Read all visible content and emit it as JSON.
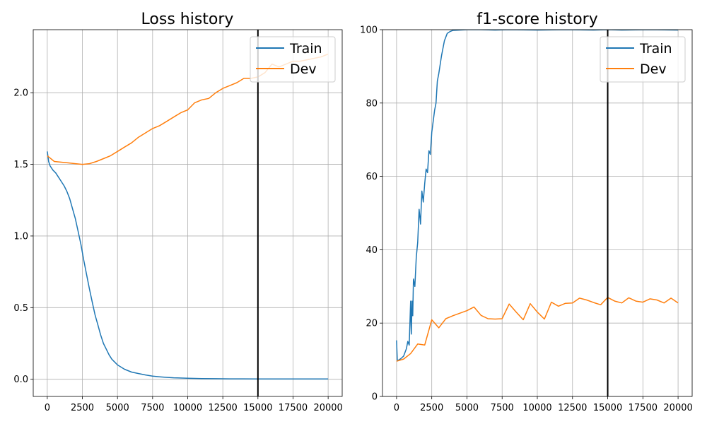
{
  "colors": {
    "train": "#1f77b4",
    "dev": "#ff7f0e",
    "grid": "#b0b0b0",
    "marker": "#000000"
  },
  "chart_data": [
    {
      "type": "line",
      "title": "Loss history",
      "xlabel": "",
      "ylabel": "",
      "xlim": [
        -1000,
        21000
      ],
      "ylim": [
        -0.12,
        2.44
      ],
      "xticks": [
        0,
        2500,
        5000,
        7500,
        10000,
        12500,
        15000,
        17500,
        20000
      ],
      "yticks": [
        0.0,
        0.5,
        1.0,
        1.5,
        2.0
      ],
      "ytick_labels": [
        "0.0",
        "0.5",
        "1.0",
        "1.5",
        "2.0"
      ],
      "grid": true,
      "legend": "top-right",
      "vline": 15000,
      "series": [
        {
          "name": "Train",
          "color": "#1f77b4",
          "x": [
            0,
            100,
            200,
            400,
            600,
            800,
            1000,
            1200,
            1400,
            1600,
            1800,
            2000,
            2200,
            2400,
            2600,
            2800,
            3000,
            3200,
            3400,
            3600,
            3800,
            4000,
            4200,
            4400,
            4600,
            4800,
            5000,
            5500,
            6000,
            6500,
            7000,
            7500,
            8000,
            8500,
            9000,
            10000,
            11000,
            12000,
            13000,
            14000,
            15000,
            16000,
            17000,
            18000,
            19000,
            20000
          ],
          "y": [
            1.59,
            1.52,
            1.49,
            1.46,
            1.44,
            1.41,
            1.38,
            1.35,
            1.31,
            1.26,
            1.19,
            1.12,
            1.03,
            0.94,
            0.83,
            0.73,
            0.63,
            0.54,
            0.45,
            0.38,
            0.31,
            0.25,
            0.21,
            0.17,
            0.14,
            0.12,
            0.1,
            0.07,
            0.05,
            0.04,
            0.03,
            0.022,
            0.017,
            0.013,
            0.01,
            0.007,
            0.005,
            0.004,
            0.003,
            0.003,
            0.002,
            0.002,
            0.002,
            0.002,
            0.002,
            0.002
          ]
        },
        {
          "name": "Dev",
          "color": "#ff7f0e",
          "x": [
            0,
            500,
            1000,
            1500,
            2000,
            2500,
            3000,
            3500,
            4000,
            4500,
            5000,
            5500,
            6000,
            6500,
            7000,
            7500,
            8000,
            8500,
            9000,
            9500,
            10000,
            10500,
            11000,
            11500,
            12000,
            12500,
            13000,
            13500,
            14000,
            14500,
            15000,
            15500,
            16000,
            16500,
            17000,
            17500,
            18000,
            18500,
            19000,
            19500,
            20000
          ],
          "y": [
            1.56,
            1.52,
            1.515,
            1.51,
            1.505,
            1.5,
            1.505,
            1.52,
            1.54,
            1.56,
            1.59,
            1.62,
            1.65,
            1.69,
            1.72,
            1.75,
            1.77,
            1.8,
            1.83,
            1.86,
            1.88,
            1.93,
            1.95,
            1.96,
            2.0,
            2.03,
            2.05,
            2.07,
            2.1,
            2.1,
            2.11,
            2.14,
            2.2,
            2.18,
            2.2,
            2.22,
            2.22,
            2.23,
            2.24,
            2.25,
            2.27
          ]
        }
      ]
    },
    {
      "type": "line",
      "title": "f1-score history",
      "xlabel": "",
      "ylabel": "",
      "xlim": [
        -1000,
        21000
      ],
      "ylim": [
        0,
        100
      ],
      "xticks": [
        0,
        2500,
        5000,
        7500,
        10000,
        12500,
        15000,
        17500,
        20000
      ],
      "yticks": [
        0,
        20,
        40,
        60,
        80,
        100
      ],
      "ytick_labels": [
        "0",
        "20",
        "40",
        "60",
        "80",
        "100"
      ],
      "grid": true,
      "legend": "top-right",
      "vline": 15000,
      "series": [
        {
          "name": "Train",
          "color": "#1f77b4",
          "x": [
            0,
            50,
            100,
            300,
            500,
            700,
            800,
            900,
            1000,
            1050,
            1100,
            1150,
            1200,
            1300,
            1400,
            1500,
            1600,
            1700,
            1800,
            1900,
            2000,
            2100,
            2200,
            2300,
            2400,
            2500,
            2600,
            2700,
            2800,
            2900,
            3000,
            3200,
            3400,
            3600,
            3800,
            4000,
            4500,
            5000,
            6000,
            7000,
            8000,
            10000,
            12000,
            14000,
            15000,
            16000,
            18000,
            20000
          ],
          "y": [
            15.3,
            10,
            9.8,
            10.3,
            11,
            13,
            15,
            14,
            26,
            17,
            26,
            22,
            32,
            30,
            38,
            42,
            51,
            47,
            56,
            53,
            58,
            62,
            61,
            67,
            66,
            72,
            75,
            78,
            80,
            86,
            88,
            93,
            97,
            99,
            99.5,
            99.8,
            99.9,
            100,
            100,
            99.9,
            100,
            99.9,
            100,
            99.9,
            100,
            99.9,
            100,
            99.9
          ]
        },
        {
          "name": "Dev",
          "color": "#ff7f0e",
          "x": [
            0,
            500,
            1000,
            1500,
            2000,
            2500,
            3000,
            3500,
            4000,
            4500,
            5000,
            5500,
            6000,
            6500,
            7000,
            7500,
            8000,
            8500,
            9000,
            9500,
            10000,
            10500,
            11000,
            11500,
            12000,
            12500,
            13000,
            13500,
            14000,
            14500,
            15000,
            15500,
            16000,
            16500,
            17000,
            17500,
            18000,
            18500,
            19000,
            19500,
            20000
          ],
          "y": [
            9.6,
            10.2,
            11.7,
            14.3,
            14,
            20.9,
            18.7,
            21.2,
            22,
            22.7,
            23.4,
            24.4,
            22.1,
            21.2,
            21.1,
            21.2,
            25.2,
            23,
            20.9,
            25.3,
            23,
            21.1,
            25.7,
            24.6,
            25.4,
            25.5,
            26.8,
            26.3,
            25.6,
            25,
            27,
            26,
            25.5,
            26.9,
            26,
            25.7,
            26.6,
            26.3,
            25.5,
            26.8,
            25.5
          ]
        }
      ]
    }
  ]
}
